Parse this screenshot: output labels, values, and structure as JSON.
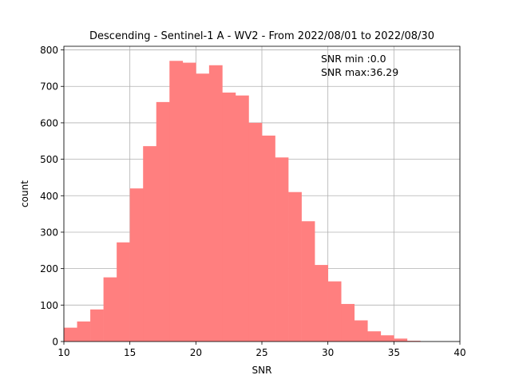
{
  "chart_data": {
    "type": "bar",
    "title": "Descending - Sentinel-1 A - WV2 - From 2022/08/01 to 2022/08/30",
    "xlabel": "SNR",
    "ylabel": "count",
    "xlim": [
      10,
      40
    ],
    "ylim": [
      0,
      810
    ],
    "xticks": [
      10,
      15,
      20,
      25,
      30,
      35,
      40
    ],
    "yticks": [
      0,
      100,
      200,
      300,
      400,
      500,
      600,
      700,
      800
    ],
    "grid": true,
    "bar_color": "#ff7f7f",
    "bin_edges": [
      10.0,
      11.0,
      12.0,
      13.0,
      14.0,
      15.0,
      16.0,
      17.0,
      18.0,
      19.0,
      20.0,
      21.0,
      22.0,
      23.0,
      24.0,
      25.0,
      26.0,
      27.0,
      28.0,
      29.0,
      30.0,
      31.0,
      32.0,
      33.0,
      34.0,
      35.0,
      36.0,
      37.0
    ],
    "values": [
      38,
      55,
      88,
      176,
      272,
      420,
      536,
      657,
      770,
      765,
      735,
      758,
      683,
      675,
      600,
      565,
      505,
      410,
      330,
      210,
      165,
      103,
      58,
      28,
      17,
      8,
      2
    ],
    "annotations": [
      "SNR min :0.0",
      "SNR max:36.29"
    ]
  }
}
